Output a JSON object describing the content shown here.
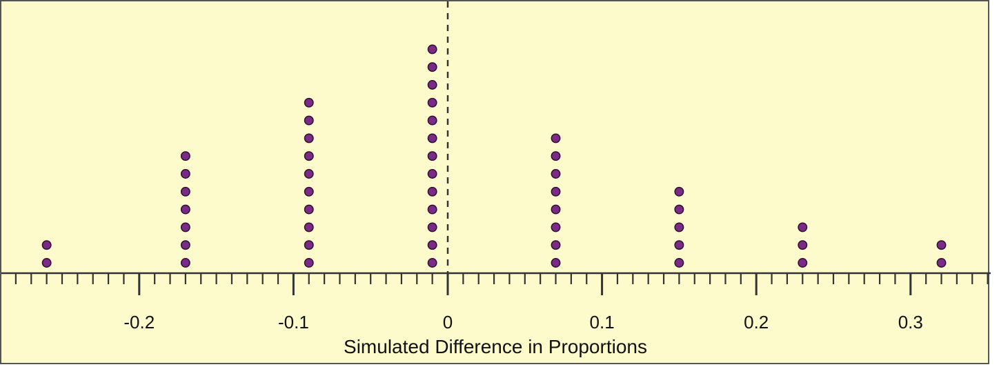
{
  "chart_data": {
    "type": "dotplot",
    "title": "",
    "xlabel": "Simulated Difference in Proportions",
    "ylabel": "",
    "xlim": [
      -0.29,
      0.35
    ],
    "major_ticks": [
      -0.2,
      -0.1,
      0,
      0.1,
      0.2,
      0.3
    ],
    "tick_labels": [
      "-0.2",
      "-0.1",
      "0",
      "0.1",
      "0.2",
      "0.3"
    ],
    "minor_tick_step": 0.01,
    "reference_line": 0,
    "stacks": [
      {
        "x": -0.26,
        "count": 2
      },
      {
        "x": -0.17,
        "count": 7
      },
      {
        "x": -0.09,
        "count": 10
      },
      {
        "x": -0.01,
        "count": 13
      },
      {
        "x": 0.07,
        "count": 8
      },
      {
        "x": 0.15,
        "count": 5
      },
      {
        "x": 0.23,
        "count": 3
      },
      {
        "x": 0.32,
        "count": 2
      }
    ],
    "colors": {
      "background": "#fdfbcc",
      "dot_fill": "#7b2a86",
      "dot_stroke": "#2b1030",
      "axis": "#333333",
      "reference_line": "#333333"
    }
  }
}
